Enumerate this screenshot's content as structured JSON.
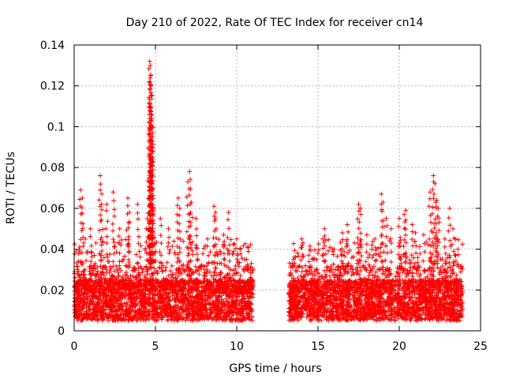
{
  "chart_data": {
    "type": "scatter",
    "title": "Day 210 of 2022, Rate Of TEC Index for receiver cn14",
    "xlabel": "GPS time / hours",
    "ylabel": "ROTI / TECUs",
    "xlim": [
      0,
      25
    ],
    "ylim": [
      0,
      0.14
    ],
    "xticks": [
      0,
      5,
      10,
      15,
      20,
      25
    ],
    "yticks": [
      0,
      0.02,
      0.04,
      0.06,
      0.08,
      0.1,
      0.12,
      0.14
    ],
    "xtick_labels": [
      "0",
      "5",
      "10",
      "15",
      "20",
      "25"
    ],
    "ytick_labels": [
      "0",
      "0.02",
      "0.04",
      "0.06",
      "0.08",
      "0.1",
      "0.12",
      "0.14"
    ],
    "grid": true,
    "marker": "+",
    "color": "#ff0000",
    "series": [
      {
        "name": "ROTI",
        "segments": [
          {
            "x_start": 0.0,
            "x_end": 11.0,
            "typical_range": [
              0.005,
              0.03
            ]
          },
          {
            "x_start": 13.2,
            "x_end": 23.9,
            "typical_range": [
              0.005,
              0.03
            ]
          }
        ],
        "data_gap": [
          11.0,
          13.2
        ],
        "notable_points": [
          {
            "x": 0.2,
            "y": 0.03
          },
          {
            "x": 0.4,
            "y": 0.069
          },
          {
            "x": 0.5,
            "y": 0.065
          },
          {
            "x": 1.0,
            "y": 0.05
          },
          {
            "x": 1.6,
            "y": 0.076
          },
          {
            "x": 1.7,
            "y": 0.067
          },
          {
            "x": 2.0,
            "y": 0.062
          },
          {
            "x": 2.4,
            "y": 0.068
          },
          {
            "x": 2.8,
            "y": 0.05
          },
          {
            "x": 3.3,
            "y": 0.065
          },
          {
            "x": 3.4,
            "y": 0.058
          },
          {
            "x": 3.9,
            "y": 0.062
          },
          {
            "x": 4.5,
            "y": 0.055
          },
          {
            "x": 4.6,
            "y": 0.065
          },
          {
            "x": 4.65,
            "y": 0.132
          },
          {
            "x": 4.68,
            "y": 0.13
          },
          {
            "x": 4.7,
            "y": 0.125
          },
          {
            "x": 4.72,
            "y": 0.12
          },
          {
            "x": 4.62,
            "y": 0.122
          },
          {
            "x": 4.75,
            "y": 0.115
          },
          {
            "x": 4.66,
            "y": 0.108
          },
          {
            "x": 4.78,
            "y": 0.104
          },
          {
            "x": 4.8,
            "y": 0.1
          },
          {
            "x": 4.73,
            "y": 0.097
          },
          {
            "x": 4.77,
            "y": 0.093
          },
          {
            "x": 4.82,
            "y": 0.09
          },
          {
            "x": 4.76,
            "y": 0.082
          },
          {
            "x": 4.7,
            "y": 0.08
          },
          {
            "x": 4.85,
            "y": 0.06
          },
          {
            "x": 5.3,
            "y": 0.055
          },
          {
            "x": 5.8,
            "y": 0.05
          },
          {
            "x": 6.4,
            "y": 0.065
          },
          {
            "x": 6.5,
            "y": 0.06
          },
          {
            "x": 7.1,
            "y": 0.078
          },
          {
            "x": 7.0,
            "y": 0.073
          },
          {
            "x": 7.2,
            "y": 0.063
          },
          {
            "x": 7.5,
            "y": 0.055
          },
          {
            "x": 8.2,
            "y": 0.045
          },
          {
            "x": 8.6,
            "y": 0.061
          },
          {
            "x": 8.7,
            "y": 0.058
          },
          {
            "x": 9.2,
            "y": 0.047
          },
          {
            "x": 9.5,
            "y": 0.058
          },
          {
            "x": 10.0,
            "y": 0.045
          },
          {
            "x": 10.2,
            "y": 0.04
          },
          {
            "x": 10.6,
            "y": 0.035
          },
          {
            "x": 10.9,
            "y": 0.033
          },
          {
            "x": 13.5,
            "y": 0.035
          },
          {
            "x": 14.0,
            "y": 0.045
          },
          {
            "x": 14.5,
            "y": 0.04
          },
          {
            "x": 15.3,
            "y": 0.045
          },
          {
            "x": 15.4,
            "y": 0.05
          },
          {
            "x": 16.0,
            "y": 0.04
          },
          {
            "x": 16.5,
            "y": 0.048
          },
          {
            "x": 16.8,
            "y": 0.052
          },
          {
            "x": 17.5,
            "y": 0.062
          },
          {
            "x": 17.6,
            "y": 0.06
          },
          {
            "x": 18.0,
            "y": 0.047
          },
          {
            "x": 18.5,
            "y": 0.045
          },
          {
            "x": 18.9,
            "y": 0.067
          },
          {
            "x": 19.0,
            "y": 0.063
          },
          {
            "x": 19.2,
            "y": 0.055
          },
          {
            "x": 19.5,
            "y": 0.05
          },
          {
            "x": 20.0,
            "y": 0.055
          },
          {
            "x": 20.3,
            "y": 0.057
          },
          {
            "x": 20.4,
            "y": 0.059
          },
          {
            "x": 20.8,
            "y": 0.052
          },
          {
            "x": 21.0,
            "y": 0.048
          },
          {
            "x": 21.5,
            "y": 0.047
          },
          {
            "x": 21.9,
            "y": 0.068
          },
          {
            "x": 22.1,
            "y": 0.076
          },
          {
            "x": 22.2,
            "y": 0.072
          },
          {
            "x": 22.3,
            "y": 0.064
          },
          {
            "x": 22.4,
            "y": 0.06
          },
          {
            "x": 22.8,
            "y": 0.045
          },
          {
            "x": 23.1,
            "y": 0.06
          },
          {
            "x": 23.3,
            "y": 0.05
          },
          {
            "x": 23.6,
            "y": 0.04
          }
        ]
      }
    ]
  }
}
